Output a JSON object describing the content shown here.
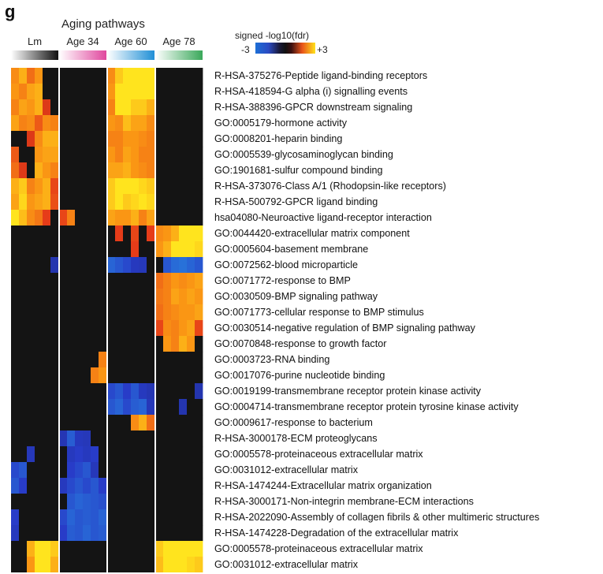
{
  "panel_letter": "g",
  "chart_data": {
    "type": "heatmap",
    "title": "Aging pathways",
    "columns": [
      "Lm",
      "Age 34",
      "Age 60",
      "Age 78"
    ],
    "column_colors": [
      [
        "#ffffff",
        "#111111"
      ],
      [
        "#ffffff",
        "#e0479e"
      ],
      [
        "#ffffff",
        "#1f8fd6"
      ],
      [
        "#ffffff",
        "#3aa85a"
      ]
    ],
    "colorbar": {
      "label": "signed -log10(fdr)",
      "min": -3,
      "max": 3,
      "min_label": "-3",
      "max_label": "+3"
    },
    "sub_columns": 6,
    "rows": [
      "R-HSA-375276-Peptide ligand-binding receptors",
      "R-HSA-418594-G alpha (i) signalling events",
      "R-HSA-388396-GPCR downstream signaling",
      "GO:0005179-hormone activity",
      "GO:0008201-heparin binding",
      "GO:0005539-glycosaminoglycan binding",
      "GO:1901681-sulfur compound binding",
      "R-HSA-373076-Class A/1 (Rhodopsin-like receptors)",
      "R-HSA-500792-GPCR ligand binding",
      "hsa04080-Neuroactive ligand-receptor interaction",
      "GO:0044420-extracellular matrix component",
      "GO:0005604-basement membrane",
      "GO:0072562-blood microparticle",
      "GO:0071772-response to BMP",
      "GO:0030509-BMP signaling pathway",
      "GO:0071773-cellular response to BMP stimulus",
      "GO:0030514-negative regulation of BMP signaling pathway",
      "GO:0070848-response to growth factor",
      "GO:0003723-RNA binding",
      "GO:0017076-purine nucleotide binding",
      "GO:0019199-transmembrane receptor protein kinase activity",
      "GO:0004714-transmembrane receptor protein tyrosine kinase activity",
      "GO:0009617-response to bacterium",
      "R-HSA-3000178-ECM proteoglycans",
      "GO:0005578-proteinaceous extracellular matrix",
      "GO:0031012-extracellular matrix",
      "R-HSA-1474244-Extracellular matrix organization",
      "R-HSA-3000171-Non-integrin membrane-ECM interactions",
      "R-HSA-2022090-Assembly of collagen fibrils & other multimeric structures",
      "R-HSA-1474228-Degradation of the extracellular matrix",
      "GO:0005578-proteinaceous extracellular matrix",
      "GO:0031012-extracellular matrix"
    ],
    "values": [
      [
        [
          2.3,
          2.6,
          2,
          2.4,
          0,
          0
        ],
        [
          0,
          0,
          0,
          0,
          0,
          0
        ],
        [
          2.3,
          2.8,
          3,
          3,
          3,
          3
        ],
        [
          0,
          0,
          0,
          0,
          0,
          0
        ]
      ],
      [
        [
          2.4,
          2.2,
          2.5,
          2.6,
          0,
          0
        ],
        [
          0,
          0,
          0,
          0,
          0,
          0
        ],
        [
          2.4,
          3,
          3,
          3,
          3,
          3
        ],
        [
          0,
          0,
          0,
          0,
          0,
          0
        ]
      ],
      [
        [
          2.2,
          2.5,
          2.4,
          2.6,
          1.4,
          0
        ],
        [
          0,
          0,
          0,
          0,
          0,
          0
        ],
        [
          2.2,
          3,
          3,
          2.8,
          2.8,
          2.6
        ],
        [
          0,
          0,
          0,
          0,
          0,
          0
        ]
      ],
      [
        [
          2.5,
          2.2,
          2.3,
          1.8,
          2.3,
          2.2
        ],
        [
          0,
          0,
          0,
          0,
          0,
          0
        ],
        [
          2.4,
          2.3,
          2.7,
          2.5,
          2.5,
          2.3
        ],
        [
          0,
          0,
          0,
          0,
          0,
          0
        ]
      ],
      [
        [
          0,
          0,
          1.4,
          2.3,
          2.6,
          2.6
        ],
        [
          0,
          0,
          0,
          0,
          0,
          0
        ],
        [
          2.2,
          2.2,
          2.4,
          2.4,
          2.3,
          2.2
        ],
        [
          0,
          0,
          0,
          0,
          0,
          0
        ]
      ],
      [
        [
          1.8,
          0,
          0,
          2.4,
          2.5,
          2.5
        ],
        [
          0,
          0,
          0,
          0,
          0,
          0
        ],
        [
          2.4,
          2.2,
          2.5,
          2.4,
          2.2,
          2.2
        ],
        [
          0,
          0,
          0,
          0,
          0,
          0
        ]
      ],
      [
        [
          2,
          1.4,
          0,
          2.6,
          2.4,
          2.2
        ],
        [
          0,
          0,
          0,
          0,
          0,
          0
        ],
        [
          2.5,
          2.5,
          2.6,
          2.4,
          2.3,
          2.2
        ],
        [
          0,
          0,
          0,
          0,
          0,
          0
        ]
      ],
      [
        [
          2.6,
          2.8,
          2.2,
          2.4,
          2.6,
          1.6
        ],
        [
          0,
          0,
          0,
          0,
          0,
          0
        ],
        [
          2.8,
          3,
          3,
          3,
          2.9,
          2.8
        ],
        [
          0,
          0,
          0,
          0,
          0,
          0
        ]
      ],
      [
        [
          2.5,
          2.9,
          2.4,
          2.5,
          2.6,
          1.7
        ],
        [
          0,
          0,
          0,
          0,
          0,
          0
        ],
        [
          2.8,
          3,
          2.8,
          2.9,
          3,
          2.9
        ],
        [
          0,
          0,
          0,
          0,
          0,
          0
        ]
      ],
      [
        [
          3,
          2.7,
          2.3,
          2.1,
          1.5,
          0
        ],
        [
          1.6,
          2.2,
          0,
          0,
          0,
          0
        ],
        [
          2.5,
          2.4,
          2.4,
          2.6,
          2.2,
          2.5
        ],
        [
          0,
          0,
          0,
          0,
          0,
          0
        ]
      ],
      [
        [
          0,
          0,
          0,
          0,
          0,
          0
        ],
        [
          0,
          0,
          0,
          0,
          0,
          0
        ],
        [
          0,
          1.5,
          0,
          1.6,
          0,
          1.5
        ],
        [
          2.3,
          2.4,
          2.6,
          3,
          3,
          3
        ]
      ],
      [
        [
          0,
          0,
          0,
          0,
          0,
          0
        ],
        [
          0,
          0,
          0,
          0,
          0,
          0
        ],
        [
          0,
          0,
          0,
          1.5,
          0,
          0
        ],
        [
          2.4,
          2.6,
          3,
          3,
          3,
          2.9
        ]
      ],
      [
        [
          0,
          0,
          0,
          0,
          0,
          -1.3
        ],
        [
          0,
          0,
          0,
          0,
          0,
          0
        ],
        [
          -2.4,
          -2.2,
          -2,
          -1.6,
          -1.5,
          0
        ],
        [
          0,
          -2.2,
          -2.5,
          -2.6,
          -2.4,
          -2.2
        ]
      ],
      [
        [
          0,
          0,
          0,
          0,
          0,
          0
        ],
        [
          0,
          0,
          0,
          0,
          0,
          0
        ],
        [
          0,
          0,
          0,
          0,
          0,
          0
        ],
        [
          2,
          2.2,
          2.4,
          2.3,
          2.4,
          2.5
        ]
      ],
      [
        [
          0,
          0,
          0,
          0,
          0,
          0
        ],
        [
          0,
          0,
          0,
          0,
          0,
          0
        ],
        [
          0,
          0,
          0,
          0,
          0,
          0
        ],
        [
          2.1,
          2.2,
          2.5,
          2.4,
          2.5,
          2.4
        ]
      ],
      [
        [
          0,
          0,
          0,
          0,
          0,
          0
        ],
        [
          0,
          0,
          0,
          0,
          0,
          0
        ],
        [
          0,
          0,
          0,
          0,
          0,
          0
        ],
        [
          2,
          2.2,
          2.3,
          2.4,
          2.4,
          2.5
        ]
      ],
      [
        [
          0,
          0,
          0,
          0,
          0,
          0
        ],
        [
          0,
          0,
          0,
          0,
          0,
          0
        ],
        [
          0,
          0,
          0,
          0,
          0,
          0
        ],
        [
          1.6,
          2.3,
          2.2,
          2.4,
          2.5,
          1.6
        ]
      ],
      [
        [
          0,
          0,
          0,
          0,
          0,
          0
        ],
        [
          0,
          0,
          0,
          0,
          0,
          0
        ],
        [
          0,
          0,
          0,
          0,
          0,
          0
        ],
        [
          0,
          2.4,
          2.2,
          2.6,
          2.4,
          0
        ]
      ],
      [
        [
          0,
          0,
          0,
          0,
          0,
          0
        ],
        [
          0,
          0,
          0,
          0,
          0,
          2.2
        ],
        [
          0,
          0,
          0,
          0,
          0,
          0
        ],
        [
          0,
          0,
          0,
          0,
          0,
          0
        ]
      ],
      [
        [
          0,
          0,
          0,
          0,
          0,
          0
        ],
        [
          0,
          0,
          0,
          0,
          2.2,
          2.4
        ],
        [
          0,
          0,
          0,
          0,
          0,
          0
        ],
        [
          0,
          0,
          0,
          0,
          0,
          0
        ]
      ],
      [
        [
          0,
          0,
          0,
          0,
          0,
          0
        ],
        [
          0,
          0,
          0,
          0,
          0,
          0
        ],
        [
          -2,
          -2.2,
          -1.8,
          -2.2,
          -1.6,
          -1.4
        ],
        [
          0,
          0,
          0,
          0,
          0,
          -1.3
        ]
      ],
      [
        [
          0,
          0,
          0,
          0,
          0,
          0
        ],
        [
          0,
          0,
          0,
          0,
          0,
          0
        ],
        [
          -2.2,
          -2.4,
          -2,
          -2.3,
          -2.4,
          -1.5
        ],
        [
          0,
          0,
          0,
          -1.3,
          0,
          0
        ]
      ],
      [
        [
          0,
          0,
          0,
          0,
          0,
          0
        ],
        [
          0,
          0,
          0,
          0,
          0,
          0
        ],
        [
          0,
          0,
          0,
          2.3,
          2.6,
          2
        ],
        [
          0,
          0,
          0,
          0,
          0,
          0
        ]
      ],
      [
        [
          0,
          0,
          0,
          0,
          0,
          0
        ],
        [
          -1.4,
          -2.3,
          -1.6,
          -1.5,
          0,
          0
        ],
        [
          0,
          0,
          0,
          0,
          0,
          0
        ],
        [
          0,
          0,
          0,
          0,
          0,
          0
        ]
      ],
      [
        [
          0,
          0,
          -1.5,
          0,
          0,
          0
        ],
        [
          0,
          -1.6,
          -1.8,
          -1.6,
          -1.8,
          0
        ],
        [
          0,
          0,
          0,
          0,
          0,
          0
        ],
        [
          0,
          0,
          0,
          0,
          0,
          0
        ]
      ],
      [
        [
          -2,
          -2.2,
          0,
          0,
          0,
          0
        ],
        [
          0,
          -1.8,
          -2,
          -2.2,
          -1.5,
          0
        ],
        [
          0,
          0,
          0,
          0,
          0,
          0
        ],
        [
          0,
          0,
          0,
          0,
          0,
          0
        ]
      ],
      [
        [
          -2.2,
          -1.8,
          0,
          0,
          0,
          0
        ],
        [
          -1.6,
          -2,
          -2.2,
          -2,
          -2.2,
          -1.8
        ],
        [
          0,
          0,
          0,
          0,
          0,
          0
        ],
        [
          0,
          0,
          0,
          0,
          0,
          0
        ]
      ],
      [
        [
          0,
          0,
          0,
          0,
          0,
          0
        ],
        [
          0,
          -2.2,
          -2.4,
          -2.3,
          -2.2,
          -2.1
        ],
        [
          0,
          0,
          0,
          0,
          0,
          0
        ],
        [
          0,
          0,
          0,
          0,
          0,
          0
        ]
      ],
      [
        [
          -1.8,
          0,
          0,
          0,
          0,
          0
        ],
        [
          -2,
          -2.4,
          -2.2,
          -2.3,
          -2.2,
          -2.4
        ],
        [
          0,
          0,
          0,
          0,
          0,
          0
        ],
        [
          0,
          0,
          0,
          0,
          0,
          0
        ]
      ],
      [
        [
          -1.6,
          0,
          0,
          0,
          0,
          0
        ],
        [
          -1.8,
          -2.3,
          -2.2,
          -2.4,
          -2.2,
          -2.3
        ],
        [
          0,
          0,
          0,
          0,
          0,
          0
        ],
        [
          0,
          0,
          0,
          0,
          0,
          0
        ]
      ],
      [
        [
          0,
          0,
          2.6,
          3,
          3,
          2.8
        ],
        [
          0,
          0,
          0,
          0,
          0,
          0
        ],
        [
          0,
          0,
          0,
          0,
          0,
          0
        ],
        [
          2.8,
          3,
          3,
          3,
          3,
          3
        ]
      ],
      [
        [
          0,
          0,
          2.4,
          3,
          3,
          2.6
        ],
        [
          0,
          0,
          0,
          0,
          0,
          0
        ],
        [
          0,
          0,
          0,
          0,
          0,
          0
        ],
        [
          2.7,
          3,
          3,
          3,
          2.9,
          2.8
        ]
      ]
    ]
  }
}
